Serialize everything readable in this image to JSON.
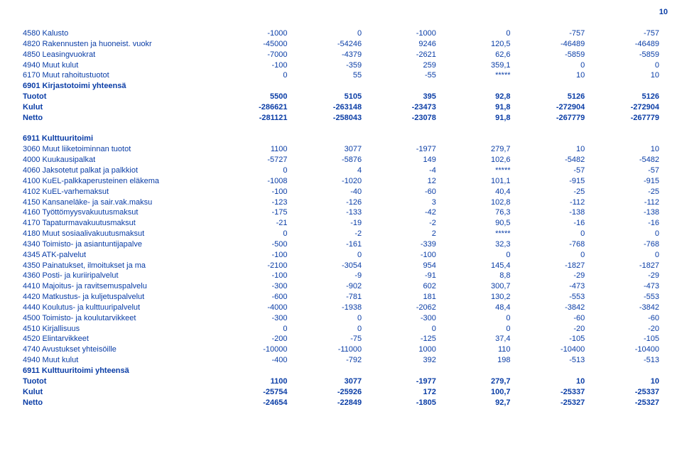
{
  "page_number": "10",
  "text_color": "#0a3da6",
  "background_color": "#ffffff",
  "font_size_pt": 8,
  "columns": 7,
  "numeric_align": "right",
  "blocks": [
    {
      "rows": [
        {
          "label": "4580 Kalusto",
          "c": [
            "-1000",
            "0",
            "-1000",
            "0",
            "-757",
            "-757"
          ]
        },
        {
          "label": "4820 Rakennusten ja huoneist. vuokr",
          "c": [
            "-45000",
            "-54246",
            "9246",
            "120,5",
            "-46489",
            "-46489"
          ]
        },
        {
          "label": "4850 Leasingvuokrat",
          "c": [
            "-7000",
            "-4379",
            "-2621",
            "62,6",
            "-5859",
            "-5859"
          ]
        },
        {
          "label": "4940 Muut kulut",
          "c": [
            "-100",
            "-359",
            "259",
            "359,1",
            "0",
            "0"
          ]
        },
        {
          "label": "6170 Muut rahoitustuotot",
          "c": [
            "0",
            "55",
            "-55",
            "*****",
            "10",
            "10"
          ]
        },
        {
          "label": "6901 Kirjastotoimi yhteensä",
          "c": [
            "",
            "",
            "",
            "",
            "",
            ""
          ],
          "bold": true
        },
        {
          "label": "Tuotot",
          "c": [
            "5500",
            "5105",
            "395",
            "92,8",
            "5126",
            "5126"
          ],
          "bold": true
        },
        {
          "label": "Kulut",
          "c": [
            "-286621",
            "-263148",
            "-23473",
            "91,8",
            "-272904",
            "-272904"
          ],
          "bold": true
        },
        {
          "label": "Netto",
          "c": [
            "-281121",
            "-258043",
            "-23078",
            "91,8",
            "-267779",
            "-267779"
          ],
          "bold": true
        }
      ]
    },
    {
      "rows": [
        {
          "label": "6911 Kulttuuritoimi",
          "c": [
            "",
            "",
            "",
            "",
            "",
            ""
          ],
          "bold": true
        },
        {
          "label": "3060 Muut liiketoiminnan tuotot",
          "c": [
            "1100",
            "3077",
            "-1977",
            "279,7",
            "10",
            "10"
          ]
        },
        {
          "label": "4000 Kuukausipalkat",
          "c": [
            "-5727",
            "-5876",
            "149",
            "102,6",
            "-5482",
            "-5482"
          ]
        },
        {
          "label": "4060 Jaksotetut palkat ja palkkiot",
          "c": [
            "0",
            "4",
            "-4",
            "*****",
            "-57",
            "-57"
          ]
        },
        {
          "label": "4100 KuEL-palkkaperusteinen eläkema",
          "c": [
            "-1008",
            "-1020",
            "12",
            "101,1",
            "-915",
            "-915"
          ]
        },
        {
          "label": "4102 KuEL-varhemaksut",
          "c": [
            "-100",
            "-40",
            "-60",
            "40,4",
            "-25",
            "-25"
          ]
        },
        {
          "label": "4150 Kansaneläke- ja sair.vak.maksu",
          "c": [
            "-123",
            "-126",
            "3",
            "102,8",
            "-112",
            "-112"
          ]
        },
        {
          "label": "4160 Työttömyysvakuutusmaksut",
          "c": [
            "-175",
            "-133",
            "-42",
            "76,3",
            "-138",
            "-138"
          ]
        },
        {
          "label": "4170 Tapaturmavakuutusmaksut",
          "c": [
            "-21",
            "-19",
            "-2",
            "90,5",
            "-16",
            "-16"
          ]
        },
        {
          "label": "4180 Muut sosiaalivakuutusmaksut",
          "c": [
            "0",
            "-2",
            "2",
            "*****",
            "0",
            "0"
          ]
        },
        {
          "label": "4340 Toimisto- ja asiantuntijapalve",
          "c": [
            "-500",
            "-161",
            "-339",
            "32,3",
            "-768",
            "-768"
          ]
        },
        {
          "label": "4345 ATK-palvelut",
          "c": [
            "-100",
            "0",
            "-100",
            "0",
            "0",
            "0"
          ]
        },
        {
          "label": "4350 Painatukset, ilmoitukset ja ma",
          "c": [
            "-2100",
            "-3054",
            "954",
            "145,4",
            "-1827",
            "-1827"
          ]
        },
        {
          "label": "4360 Posti- ja kuriiripalvelut",
          "c": [
            "-100",
            "-9",
            "-91",
            "8,8",
            "-29",
            "-29"
          ]
        },
        {
          "label": "4410 Majoitus- ja ravitsemuspalvelu",
          "c": [
            "-300",
            "-902",
            "602",
            "300,7",
            "-473",
            "-473"
          ]
        },
        {
          "label": "4420 Matkustus- ja kuljetuspalvelut",
          "c": [
            "-600",
            "-781",
            "181",
            "130,2",
            "-553",
            "-553"
          ]
        },
        {
          "label": "4440 Koulutus- ja kulttuuripalvelut",
          "c": [
            "-4000",
            "-1938",
            "-2062",
            "48,4",
            "-3842",
            "-3842"
          ]
        },
        {
          "label": "4500 Toimisto- ja koulutarvikkeet",
          "c": [
            "-300",
            "0",
            "-300",
            "0",
            "-60",
            "-60"
          ]
        },
        {
          "label": "4510 Kirjallisuus",
          "c": [
            "0",
            "0",
            "0",
            "0",
            "-20",
            "-20"
          ]
        },
        {
          "label": "4520 Elintarvikkeet",
          "c": [
            "-200",
            "-75",
            "-125",
            "37,4",
            "-105",
            "-105"
          ]
        },
        {
          "label": "4740 Avustukset yhteisöille",
          "c": [
            "-10000",
            "-11000",
            "1000",
            "110",
            "-10400",
            "-10400"
          ]
        },
        {
          "label": "4940 Muut kulut",
          "c": [
            "-400",
            "-792",
            "392",
            "198",
            "-513",
            "-513"
          ]
        },
        {
          "label": "6911 Kulttuuritoimi yhteensä",
          "c": [
            "",
            "",
            "",
            "",
            "",
            ""
          ],
          "bold": true
        },
        {
          "label": "Tuotot",
          "c": [
            "1100",
            "3077",
            "-1977",
            "279,7",
            "10",
            "10"
          ],
          "bold": true
        },
        {
          "label": "Kulut",
          "c": [
            "-25754",
            "-25926",
            "172",
            "100,7",
            "-25337",
            "-25337"
          ],
          "bold": true
        },
        {
          "label": "Netto",
          "c": [
            "-24654",
            "-22849",
            "-1805",
            "92,7",
            "-25327",
            "-25327"
          ],
          "bold": true
        }
      ]
    }
  ]
}
